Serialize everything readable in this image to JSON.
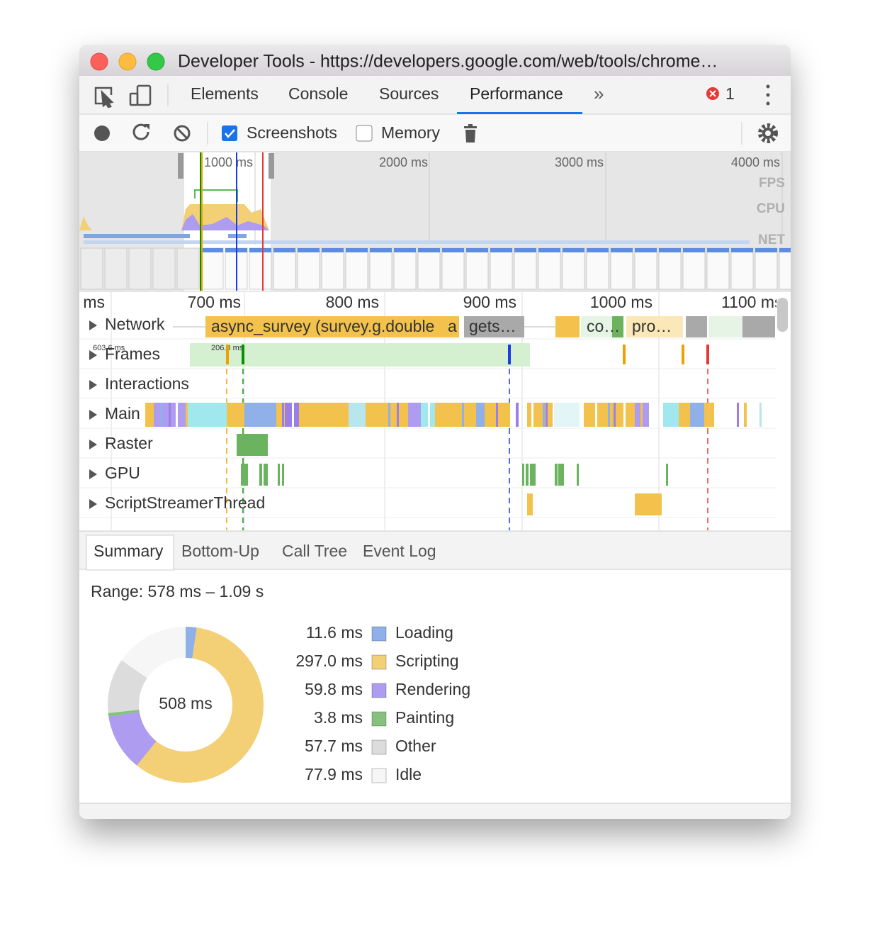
{
  "window": {
    "title": "Developer Tools - https://developers.google.com/web/tools/chrome…"
  },
  "tabs": {
    "items": [
      "Elements",
      "Console",
      "Sources",
      "Performance"
    ],
    "error_count": "1"
  },
  "toolbar": {
    "screenshots": "Screenshots",
    "memory": "Memory"
  },
  "overview": {
    "ticks": [
      "1000 ms",
      "2000 ms",
      "3000 ms",
      "4000 ms"
    ],
    "lanes": [
      "FPS",
      "CPU",
      "NET"
    ]
  },
  "timeline": {
    "ticks": [
      "ms",
      "700 ms",
      "800 ms",
      "900 ms",
      "1000 ms",
      "1100 ms"
    ],
    "tracks": [
      "Network",
      "Frames",
      "Interactions",
      "Main",
      "Raster",
      "GPU",
      "ScriptStreamerThread"
    ],
    "network_items": [
      "async_survey (survey.g.double",
      "a",
      "gets…",
      "co…",
      "pro…"
    ],
    "frame_labels": [
      "603.6 ms",
      "206.0 ms"
    ]
  },
  "details": {
    "tabs": [
      "Summary",
      "Bottom-Up",
      "Call Tree",
      "Event Log"
    ],
    "range": "Range: 578 ms – 1.09 s",
    "chart_data": {
      "type": "pie",
      "total_label": "508 ms",
      "categories": [
        "Loading",
        "Scripting",
        "Rendering",
        "Painting",
        "Other",
        "Idle"
      ],
      "values": [
        11.6,
        297.0,
        59.8,
        3.8,
        57.7,
        77.9
      ],
      "value_labels": [
        "11.6 ms",
        "297.0 ms",
        "59.8 ms",
        "3.8 ms",
        "57.7 ms",
        "77.9 ms"
      ],
      "colors": [
        "#8fb0e8",
        "#f3cf75",
        "#ad9cef",
        "#86c27d",
        "#dcdcdc",
        "#f6f6f6"
      ]
    }
  }
}
